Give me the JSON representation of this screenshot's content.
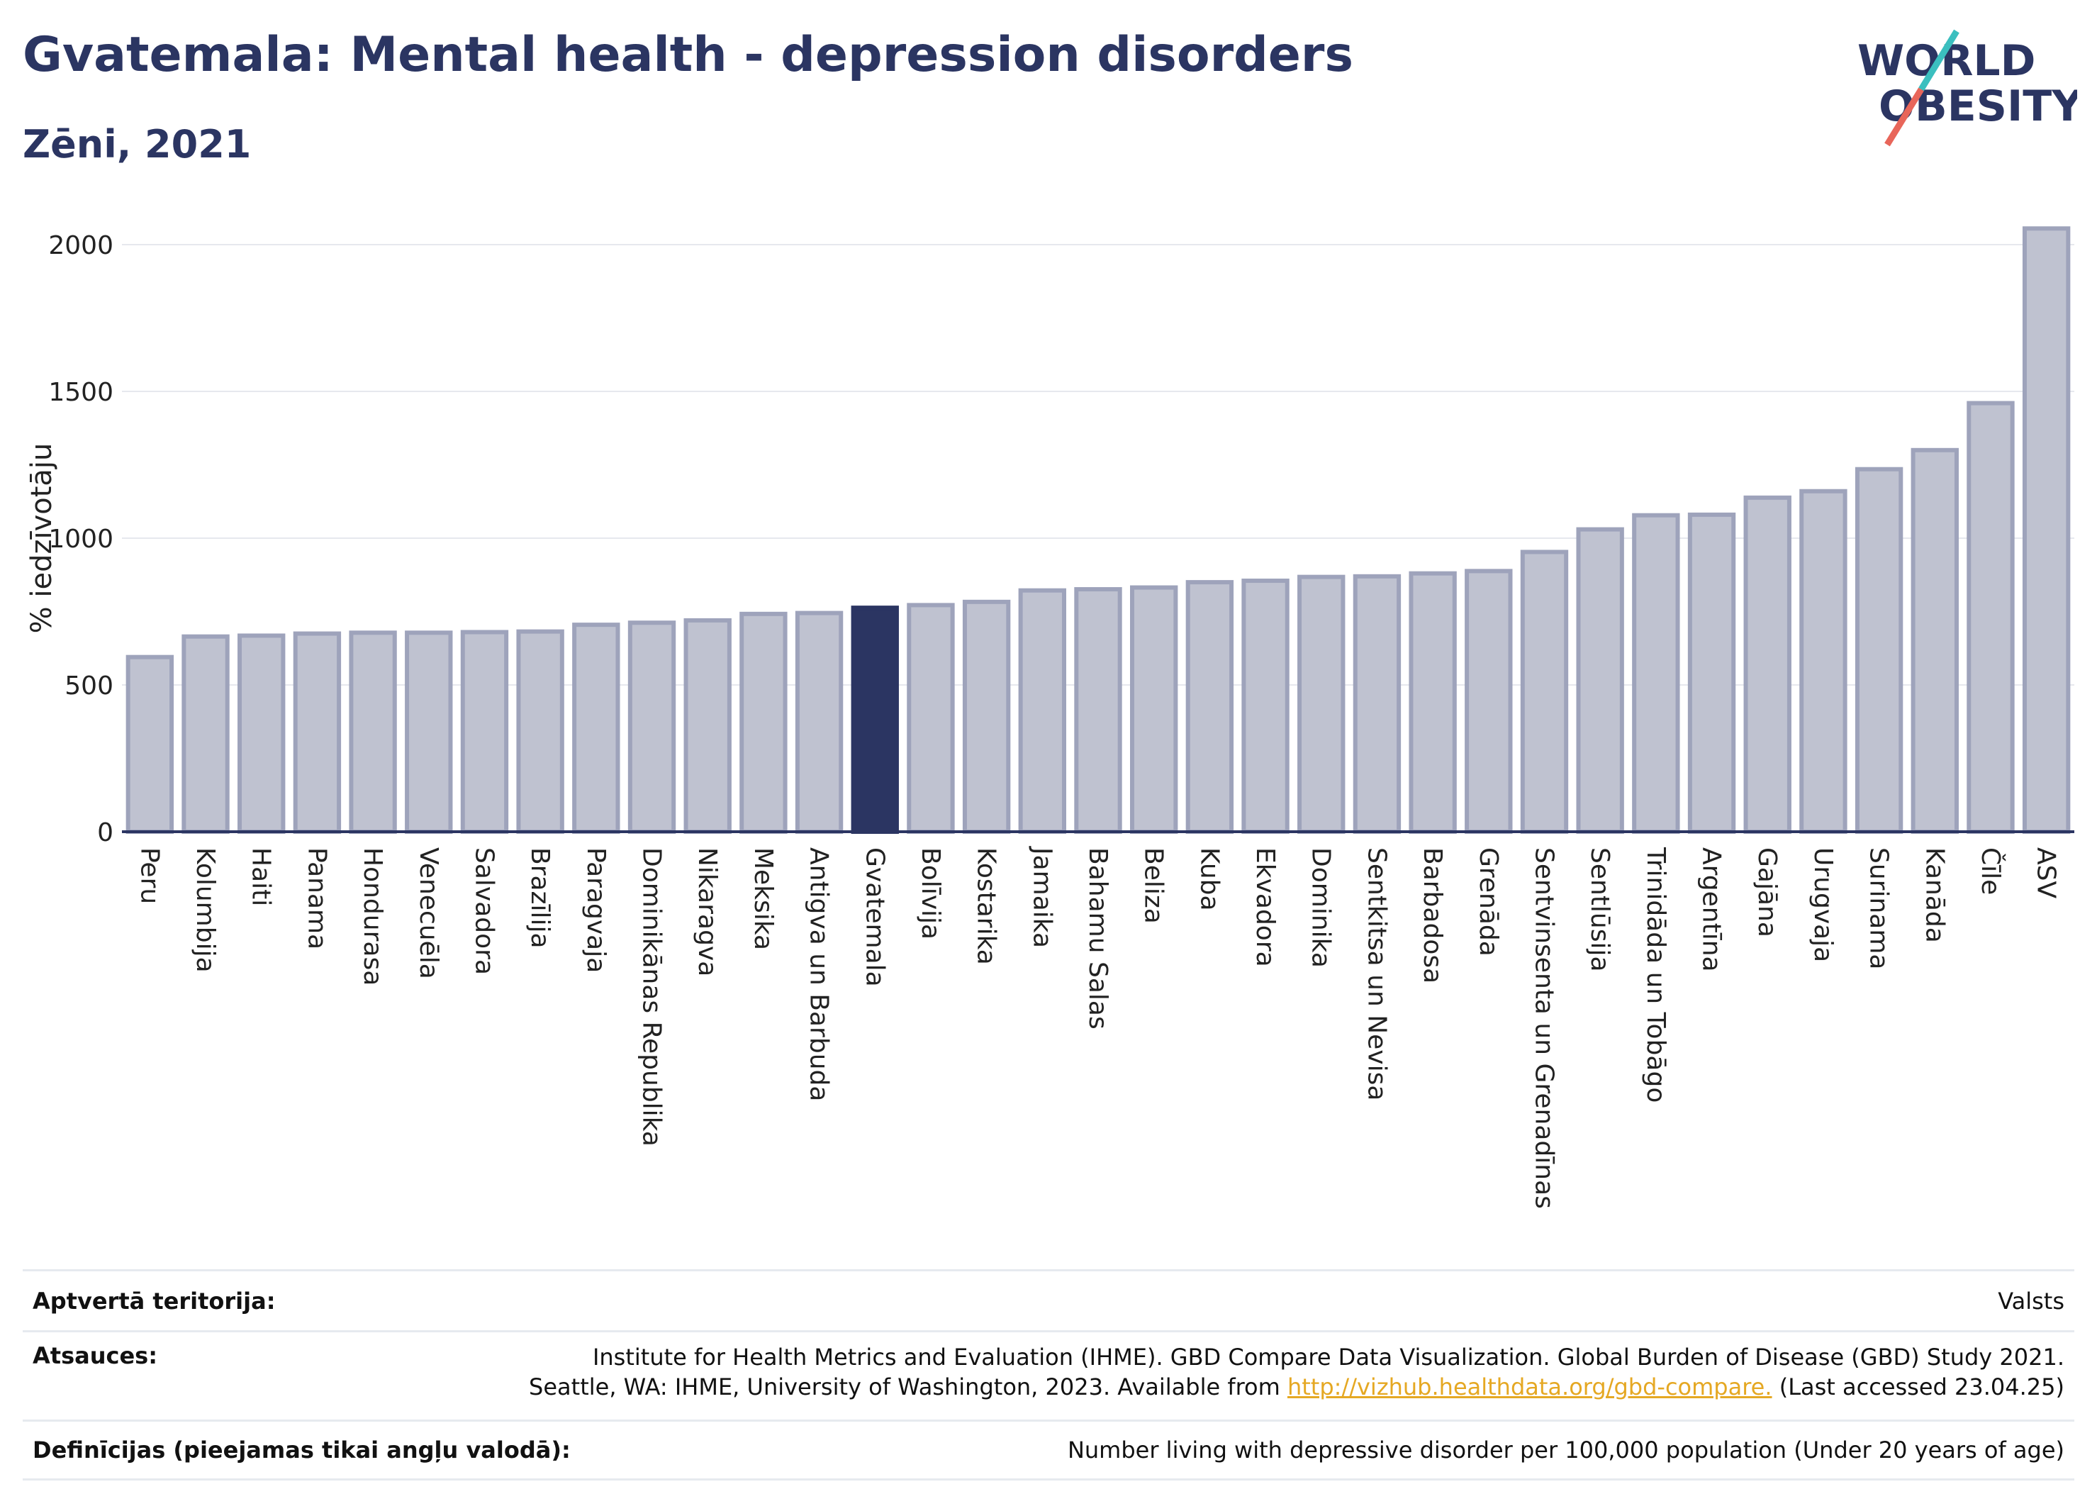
{
  "header": {
    "title": "Gvatemala: Mental health - depression disorders",
    "subtitle": "Zēni, 2021"
  },
  "logo": {
    "line1": "WORLD",
    "line2": "OBESITY",
    "colors": {
      "text": "#2b3562",
      "slash_teal": "#3bbfbf",
      "slash_red": "#e8665a"
    }
  },
  "colors": {
    "bar": "#bfc2d0",
    "bar_stroke": "#9ea3bb",
    "highlight": "#2b3562",
    "grid": "#e6e8ee",
    "axis": "#2b3562"
  },
  "chart_data": {
    "type": "bar",
    "title": "Gvatemala: Mental health - depression disorders",
    "subtitle": "Zēni, 2021",
    "ylabel": "% iedzīvotāju",
    "xlabel": "",
    "ylim": [
      0,
      2100
    ],
    "yticks": [
      0,
      500,
      1000,
      1500,
      2000
    ],
    "grid": true,
    "highlight": "Gvatemala",
    "categories": [
      "Peru",
      "Kolumbija",
      "Haiti",
      "Panama",
      "Hondurasa",
      "Venecuēla",
      "Salvadora",
      "Brazīlija",
      "Paragvaja",
      "Dominikānas Republika",
      "Nikaragva",
      "Meksika",
      "Antigva un Barbuda",
      "Gvatemala",
      "Bolīvija",
      "Kostarika",
      "Jamaika",
      "Bahamu Salas",
      "Beliza",
      "Kuba",
      "Ekvadora",
      "Dominika",
      "Sentkitsa un Nevisa",
      "Barbadosa",
      "Grenāda",
      "Sentvinsenta un Grenadīnas",
      "Sentlūsija",
      "Trinidāda un Tobāgo",
      "Argentīna",
      "Gajāna",
      "Urugvaja",
      "Surinama",
      "Kanāda",
      "Čīle",
      "ASV"
    ],
    "values": [
      595,
      665,
      668,
      675,
      678,
      678,
      680,
      682,
      705,
      712,
      720,
      742,
      745,
      763,
      772,
      783,
      822,
      826,
      832,
      850,
      855,
      868,
      870,
      880,
      888,
      953,
      1030,
      1078,
      1080,
      1138,
      1160,
      1235,
      1300,
      1460,
      2055
    ]
  },
  "meta": {
    "rows": [
      {
        "label": "Aptvertā teritorija:",
        "value_lines": [
          "Valsts"
        ]
      },
      {
        "label": "Atsauces:",
        "value_lines": [
          "Institute for Health Metrics and Evaluation (IHME). GBD Compare Data Visualization. Global Burden of Disease (GBD) Study 2021.",
          "Seattle, WA: IHME, University of Washington, 2023. Available from"
        ],
        "link": "http://vizhub.healthdata.org/gbd-compare.",
        "after_link": "(Last accessed 23.04.25)"
      },
      {
        "label": "Definīcijas (pieejamas tikai angļu valodā):",
        "value_lines": [
          "Number living with depressive disorder per 100,000 population (Under 20 years of age)"
        ]
      }
    ]
  }
}
